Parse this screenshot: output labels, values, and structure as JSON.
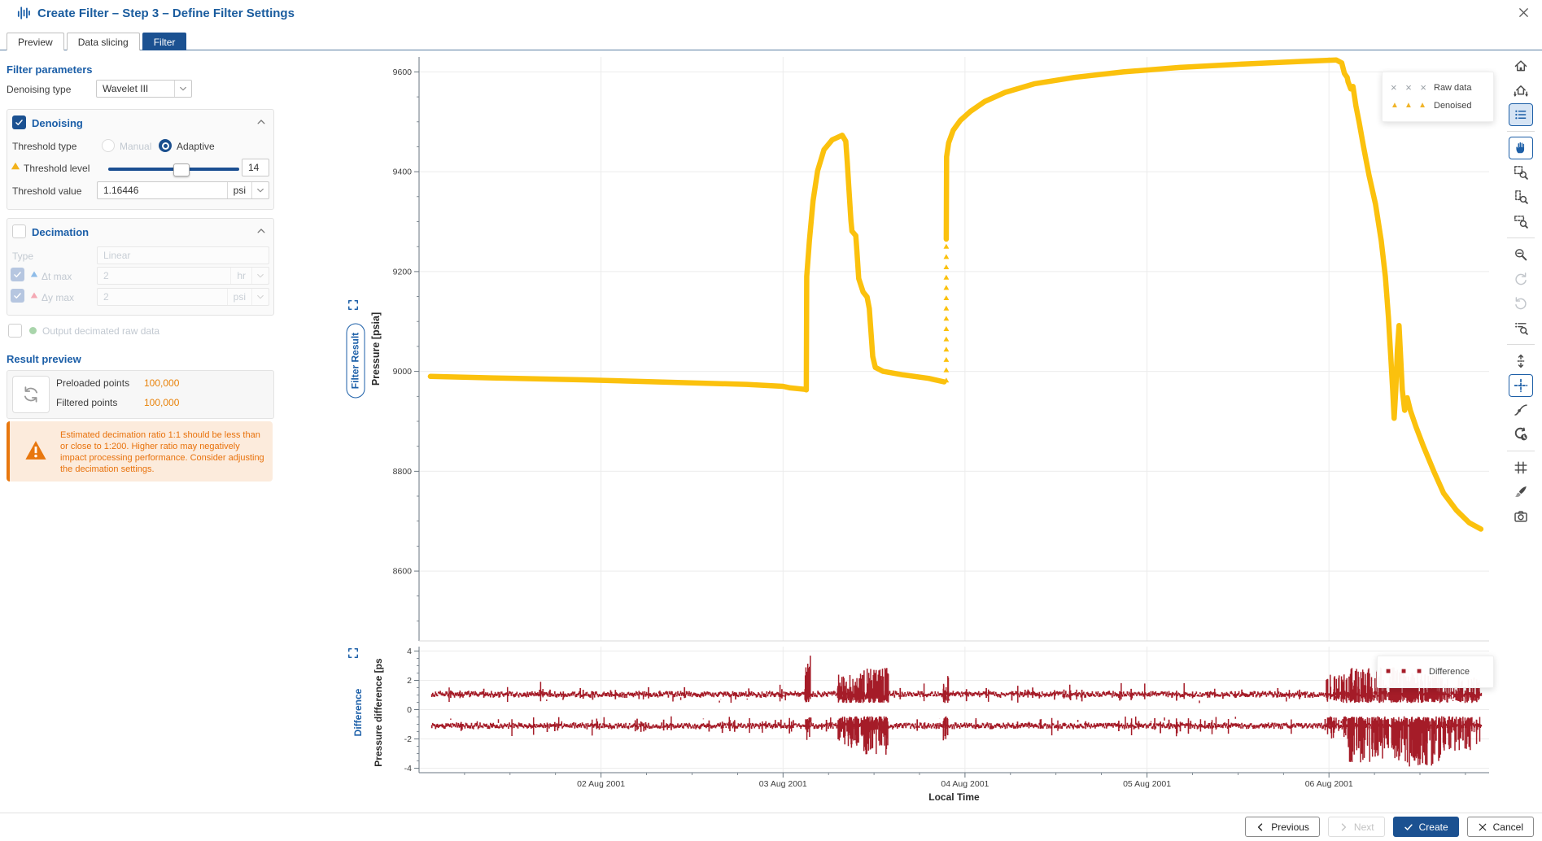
{
  "window": {
    "title": "Create Filter – Step 3 – Define Filter Settings"
  },
  "tabs": [
    {
      "label": "Preview",
      "active": false
    },
    {
      "label": "Data slicing",
      "active": false
    },
    {
      "label": "Filter",
      "active": true
    }
  ],
  "filter_parameters": {
    "heading": "Filter parameters",
    "denoising_type": {
      "label": "Denoising type",
      "value": "Wavelet III"
    },
    "denoising": {
      "title": "Denoising",
      "checked": true,
      "threshold_type": {
        "label": "Threshold type",
        "options": [
          {
            "label": "Manual",
            "selected": false,
            "enabled": false
          },
          {
            "label": "Adaptive",
            "selected": true,
            "enabled": true
          }
        ]
      },
      "threshold_level": {
        "label": "Threshold level",
        "value": "14",
        "slider_percent": 55,
        "warning": true
      },
      "threshold_value": {
        "label": "Threshold value",
        "value": "1.16446",
        "unit": "psi"
      }
    },
    "decimation": {
      "title": "Decimation",
      "checked": false,
      "type": {
        "label": "Type",
        "value": "Linear"
      },
      "dt_max": {
        "label": "Δt max",
        "checked": true,
        "value": "2",
        "unit": "hr"
      },
      "dy_max": {
        "label": "Δy max",
        "checked": true,
        "value": "2",
        "unit": "psi"
      },
      "output_raw": {
        "label": "Output decimated raw data",
        "checked": false
      }
    }
  },
  "result_preview": {
    "heading": "Result preview",
    "preloaded_label": "Preloaded points",
    "preloaded_value": "100,000",
    "filtered_label": "Filtered points",
    "filtered_value": "100,000",
    "warning_text": "Estimated decimation ratio 1:1 should be less than or close to 1:200. Higher ratio may negatively impact processing performance. Consider adjusting the decimation settings."
  },
  "footer": {
    "previous": "Previous",
    "next": "Next",
    "create": "Create",
    "cancel": "Cancel"
  },
  "toolbar": {
    "groups": [
      [
        "home",
        "home-restore",
        "legend-list"
      ],
      [
        "pan-hand",
        "zoom-area",
        "zoom-x",
        "zoom-y"
      ],
      [
        "zoom-out",
        "undo-zoom",
        "redo-zoom",
        "zoom-list"
      ],
      [
        "fit-vertical",
        "crosshair",
        "tangent-point",
        "time-shift"
      ],
      [
        "grid",
        "style-brush",
        "snapshot-camera"
      ]
    ],
    "selected": [
      "legend-list",
      "pan-hand",
      "crosshair"
    ],
    "disabled": [
      "undo-zoom",
      "redo-zoom"
    ]
  },
  "colors": {
    "accent_blue": "#1C5FA8",
    "navy": "#1B5191",
    "warning_orange": "#E8770E",
    "value_orange": "#E8820A",
    "curve_yellow": "#FBC10D",
    "diff_red": "#A51C28",
    "legend_x_grey": "#9AA0A6"
  },
  "chart_data": [
    {
      "type": "line",
      "title": "Filter Result",
      "ylabel": "Pressure [psia]",
      "xlabel": "Local Time",
      "xlim_days": [
        0,
        5.88
      ],
      "ylim": [
        8460,
        9630
      ],
      "y_ticks": [
        8600,
        8800,
        9000,
        9200,
        9400,
        9600
      ],
      "x_ticks": [
        {
          "t": 1,
          "label": "02 Aug 2001"
        },
        {
          "t": 2,
          "label": "03 Aug 2001"
        },
        {
          "t": 3,
          "label": "04 Aug 2001"
        },
        {
          "t": 4,
          "label": "05 Aug 2001"
        },
        {
          "t": 5,
          "label": "06 Aug 2001"
        }
      ],
      "legend": [
        {
          "label": "Raw data",
          "marker": "x",
          "color": "#9AA0A6"
        },
        {
          "label": "Denoised",
          "marker": "triangle",
          "color": "#F0B429"
        }
      ],
      "series": [
        {
          "name": "Denoised",
          "color": "#FBC10D",
          "segments": [
            [
              [
                0.062,
                8990
              ],
              [
                0.4,
                8987
              ],
              [
                0.9,
                8983
              ],
              [
                1.4,
                8978
              ],
              [
                1.8,
                8974
              ],
              [
                2.0,
                8970
              ],
              [
                2.04,
                8967
              ],
              [
                2.12,
                8964
              ],
              [
                2.128,
                8963
              ],
              [
                2.13,
                9190
              ],
              [
                2.145,
                9262
              ],
              [
                2.165,
                9342
              ],
              [
                2.19,
                9402
              ],
              [
                2.225,
                9444
              ],
              [
                2.27,
                9464
              ],
              [
                2.325,
                9473
              ],
              [
                2.345,
                9461
              ],
              [
                2.353,
                9420
              ],
              [
                2.362,
                9367
              ],
              [
                2.373,
                9303
              ],
              [
                2.379,
                9281
              ],
              [
                2.4,
                9272
              ],
              [
                2.406,
                9240
              ],
              [
                2.416,
                9186
              ],
              [
                2.44,
                9159
              ],
              [
                2.462,
                9149
              ],
              [
                2.474,
                9126
              ],
              [
                2.484,
                9076
              ],
              [
                2.493,
                9030
              ],
              [
                2.507,
                9008
              ],
              [
                2.55,
                9000
              ],
              [
                2.66,
                8993
              ],
              [
                2.8,
                8986
              ],
              [
                2.885,
                8979
              ]
            ],
            [
              [
                2.897,
                9265
              ],
              [
                2.899,
                9430
              ],
              [
                2.91,
                9458
              ],
              [
                2.935,
                9483
              ],
              [
                2.975,
                9503
              ],
              [
                3.03,
                9521
              ],
              [
                3.11,
                9541
              ],
              [
                3.22,
                9559
              ],
              [
                3.38,
                9576
              ],
              [
                3.6,
                9589
              ],
              [
                3.87,
                9600
              ],
              [
                4.18,
                9609
              ],
              [
                4.54,
                9616
              ],
              [
                4.85,
                9621
              ],
              [
                5.04,
                9624
              ],
              [
                5.07,
                9618
              ],
              [
                5.085,
                9597
              ],
              [
                5.1,
                9589
              ],
              [
                5.105,
                9580
              ],
              [
                5.12,
                9566
              ],
              [
                5.132,
                9571
              ],
              [
                5.148,
                9532
              ],
              [
                5.166,
                9499
              ],
              [
                5.19,
                9450
              ],
              [
                5.22,
                9393
              ],
              [
                5.256,
                9335
              ],
              [
                5.287,
                9262
              ],
              [
                5.31,
                9190
              ],
              [
                5.327,
                9108
              ],
              [
                5.34,
                9028
              ],
              [
                5.35,
                8963
              ],
              [
                5.358,
                8906
              ],
              [
                5.367,
                8963
              ],
              [
                5.376,
                9044
              ],
              [
                5.385,
                9092
              ],
              [
                5.394,
                9028
              ],
              [
                5.403,
                8963
              ],
              [
                5.416,
                8922
              ],
              [
                5.43,
                8947
              ],
              [
                5.447,
                8922
              ],
              [
                5.478,
                8889
              ],
              [
                5.52,
                8849
              ],
              [
                5.576,
                8800
              ],
              [
                5.63,
                8756
              ],
              [
                5.7,
                8722
              ],
              [
                5.77,
                8697
              ],
              [
                5.835,
                8684
              ]
            ]
          ],
          "marker_columns": [
            {
              "t": 2.897,
              "p_from": 8982,
              "p_to": 9250,
              "count": 14
            }
          ]
        }
      ]
    },
    {
      "type": "scatter",
      "title": "Difference",
      "ylabel": "Pressure difference [ps",
      "xlabel": "Local Time",
      "xlim_days": [
        0,
        5.88
      ],
      "ylim": [
        -4.3,
        4.3
      ],
      "y_ticks": [
        -4,
        -2,
        0,
        2,
        4
      ],
      "legend": [
        {
          "label": "Difference",
          "marker": "square",
          "color": "#A51C28"
        }
      ],
      "color": "#A51C28",
      "bands": [
        {
          "y": 1.05,
          "t0": 0.07,
          "t1": 5.84
        },
        {
          "y": -1.1,
          "t0": 0.07,
          "t1": 5.84
        }
      ],
      "clusters": [
        {
          "t0": 2.12,
          "t1": 2.155,
          "ymin": -2.3,
          "ymax": 3.9,
          "n": 26
        },
        {
          "t0": 2.3,
          "t1": 2.42,
          "ymin": -2.6,
          "ymax": 2.4,
          "n": 90
        },
        {
          "t0": 2.42,
          "t1": 2.58,
          "ymin": -3.1,
          "ymax": 2.9,
          "n": 130
        },
        {
          "t0": 2.88,
          "t1": 2.915,
          "ymin": -2.1,
          "ymax": 2.3,
          "n": 22
        },
        {
          "t0": 4.98,
          "t1": 5.1,
          "ymin": -2.0,
          "ymax": 2.4,
          "n": 55
        },
        {
          "t0": 5.1,
          "t1": 5.42,
          "ymin": -3.6,
          "ymax": 2.9,
          "n": 230
        },
        {
          "t0": 5.42,
          "t1": 5.62,
          "ymin": -3.9,
          "ymax": 2.6,
          "n": 170
        },
        {
          "t0": 5.62,
          "t1": 5.83,
          "ymin": -2.8,
          "ymax": 2.2,
          "n": 110
        },
        {
          "t0": 0.15,
          "t1": 4.95,
          "ymin": -1.9,
          "ymax": 1.9,
          "n": 80
        }
      ]
    }
  ]
}
